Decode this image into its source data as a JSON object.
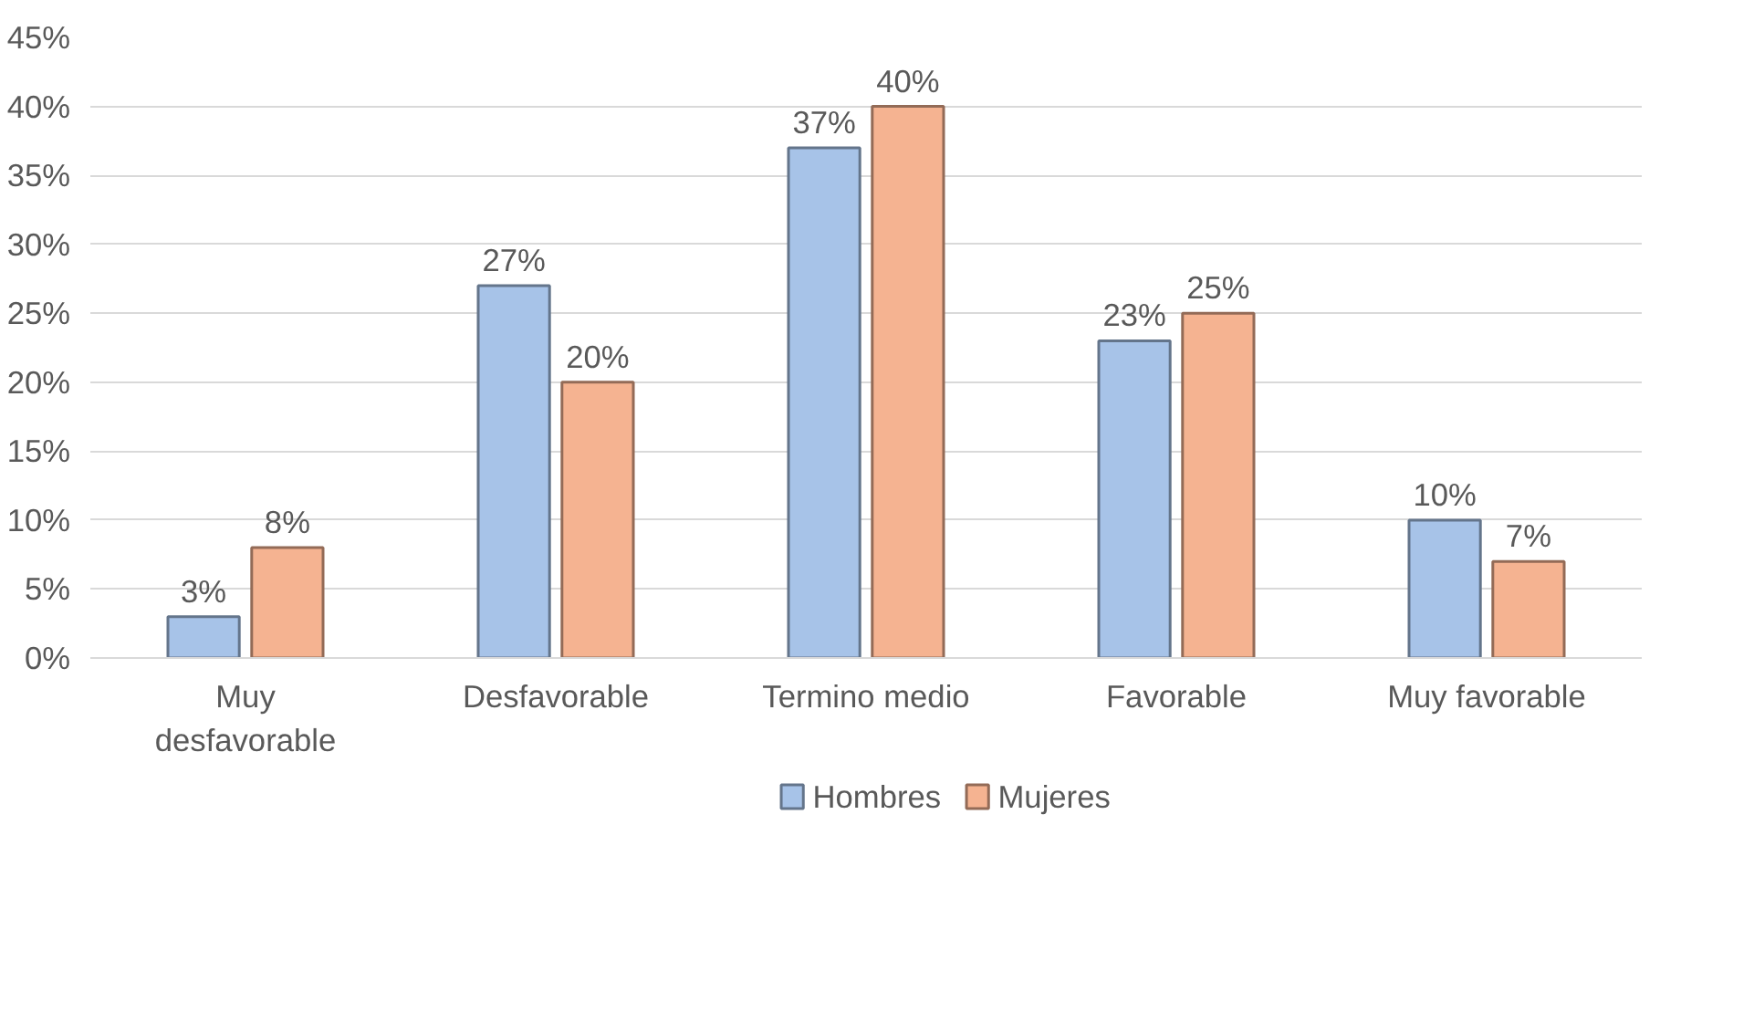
{
  "chart_data": {
    "type": "bar",
    "categories": [
      "Muy desfavorable",
      "Desfavorable",
      "Termino medio",
      "Favorable",
      "Muy favorable"
    ],
    "series": [
      {
        "name": "Hombres",
        "color": "#a7c3e8",
        "values": [
          3,
          27,
          37,
          23,
          10
        ],
        "value_labels": [
          "3%",
          "27%",
          "37%",
          "23%",
          "10%"
        ]
      },
      {
        "name": "Mujeres",
        "color": "#f5b391",
        "values": [
          8,
          20,
          40,
          25,
          7
        ],
        "value_labels": [
          "8%",
          "20%",
          "40%",
          "25%",
          "7%"
        ]
      }
    ],
    "ylim": [
      0,
      45
    ],
    "yticks": [
      {
        "value": 0,
        "label": "0%"
      },
      {
        "value": 5,
        "label": "5%"
      },
      {
        "value": 10,
        "label": "10%"
      },
      {
        "value": 15,
        "label": "15%"
      },
      {
        "value": 20,
        "label": "20%"
      },
      {
        "value": 25,
        "label": "25%"
      },
      {
        "value": 30,
        "label": "30%"
      },
      {
        "value": 35,
        "label": "35%"
      },
      {
        "value": 40,
        "label": "40%"
      },
      {
        "value": 45,
        "label": "45%"
      }
    ],
    "grid": "y",
    "legend": "bottom"
  }
}
